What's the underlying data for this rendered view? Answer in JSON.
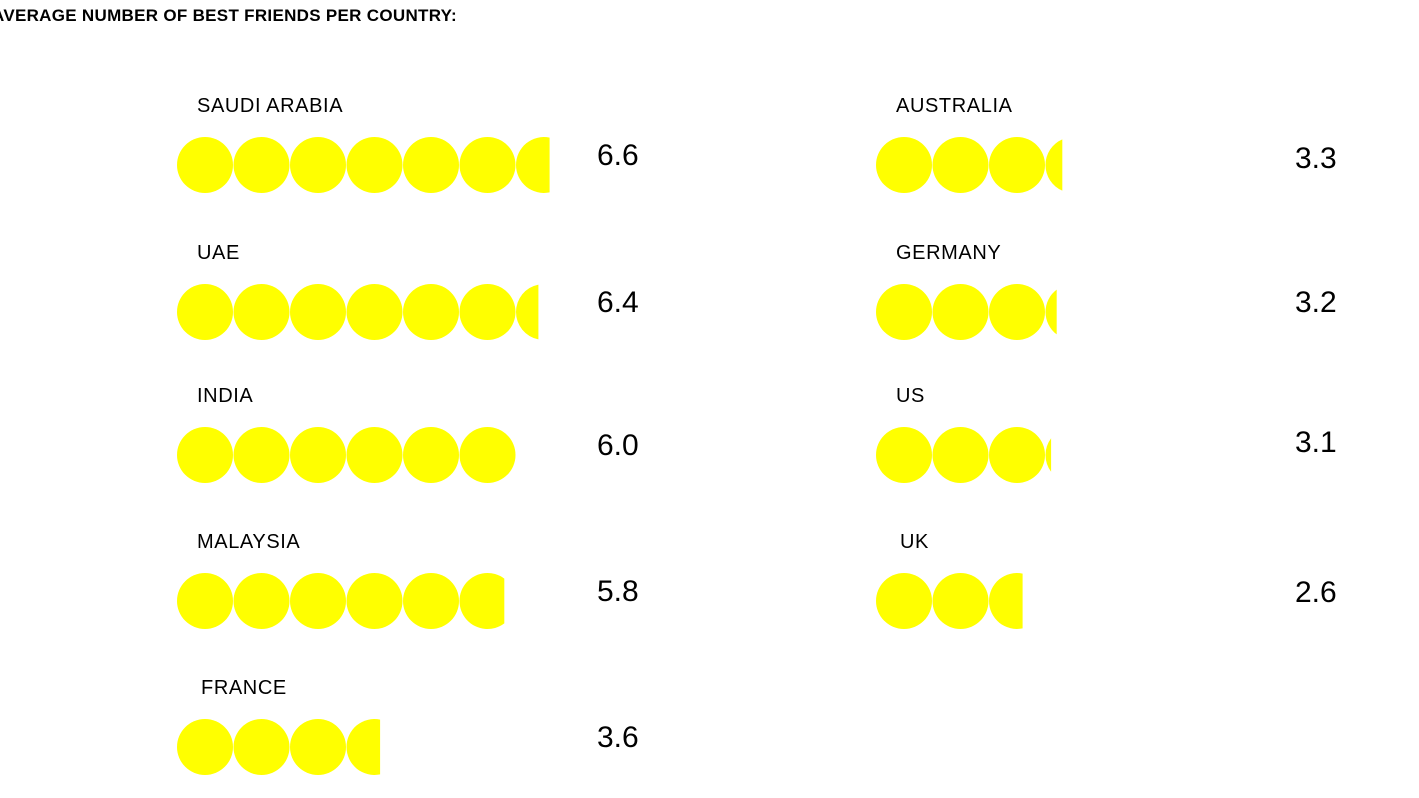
{
  "chart_data": {
    "type": "pictogram",
    "title": "AVERAGE NUMBER OF BEST FRIENDS PER COUNTRY:",
    "unit_icon": "yellow-circle",
    "icon_color": "#FFFF00",
    "series": [
      {
        "country": "SAUDI ARABIA",
        "value": 6.6,
        "label": "6.6"
      },
      {
        "country": "UAE",
        "value": 6.4,
        "label": "6.4"
      },
      {
        "country": "INDIA",
        "value": 6.0,
        "label": "6.0"
      },
      {
        "country": "MALAYSIA",
        "value": 5.8,
        "label": "5.8"
      },
      {
        "country": "FRANCE",
        "value": 3.6,
        "label": "3.6"
      },
      {
        "country": "AUSTRALIA",
        "value": 3.3,
        "label": "3.3"
      },
      {
        "country": "GERMANY",
        "value": 3.2,
        "label": "3.2"
      },
      {
        "country": "US",
        "value": 3.1,
        "label": "3.1"
      },
      {
        "country": "UK",
        "value": 2.6,
        "label": "2.6"
      }
    ]
  }
}
